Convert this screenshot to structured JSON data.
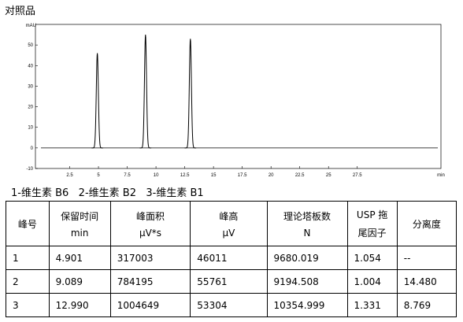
{
  "header": {
    "title": "对照品"
  },
  "chromatogram": {
    "y_unit": "mAU",
    "x_unit": "min",
    "xlim": [
      0,
      34.5
    ],
    "ylim": [
      -10,
      60
    ],
    "xticks": [
      2.5,
      5,
      7.5,
      10,
      12.5,
      15,
      17.5,
      20,
      22.5,
      25,
      27.5
    ],
    "yticks": [
      -10,
      0,
      10,
      20,
      30,
      40,
      50
    ],
    "peaks": {
      "x": [
        4.901,
        9.089,
        12.99
      ],
      "values": [
        46,
        55,
        53
      ]
    },
    "color": "#000000"
  },
  "caption": "1-维生素 B6   2-维生素 B2   3-维生素 B1",
  "table": {
    "header": [
      [
        "峰号"
      ],
      [
        "保留时间",
        "min"
      ],
      [
        "峰面积",
        "μV*s"
      ],
      [
        "峰高",
        "μV"
      ],
      [
        "理论塔板数",
        "N"
      ],
      [
        "USP 拖",
        "尾因子"
      ],
      [
        "分离度"
      ]
    ],
    "rows": [
      [
        "1",
        "4.901",
        "317003",
        "46011",
        "9680.019",
        "1.054",
        "--"
      ],
      [
        "2",
        "9.089",
        "784195",
        "55761",
        "9194.508",
        "1.004",
        "14.480"
      ],
      [
        "3",
        "12.990",
        "1004649",
        "53304",
        "10354.999",
        "1.331",
        "8.769"
      ]
    ]
  }
}
